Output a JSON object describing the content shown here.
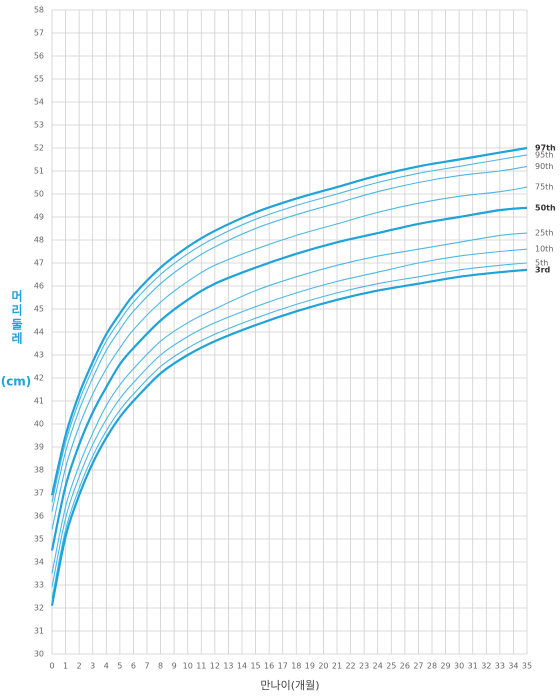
{
  "chart_data": {
    "type": "line",
    "x_label": "만나이(개월)",
    "y_label": "머리둘레",
    "y_unit": "(cm)",
    "x": [
      0,
      1,
      2,
      3,
      4,
      5,
      6,
      8,
      10,
      12,
      15,
      18,
      21,
      24,
      27,
      30,
      33,
      35
    ],
    "xlim": [
      0,
      35
    ],
    "ylim": [
      30,
      58
    ],
    "xticks": [
      0,
      1,
      2,
      3,
      4,
      5,
      6,
      7,
      8,
      9,
      10,
      11,
      12,
      13,
      14,
      15,
      16,
      17,
      18,
      19,
      20,
      21,
      22,
      23,
      24,
      25,
      26,
      27,
      28,
      29,
      30,
      31,
      32,
      33,
      34,
      35
    ],
    "yticks": [
      30,
      31,
      32,
      33,
      34,
      35,
      36,
      37,
      38,
      39,
      40,
      41,
      42,
      43,
      44,
      45,
      46,
      47,
      48,
      49,
      50,
      51,
      52,
      53,
      54,
      55,
      56,
      57,
      58
    ],
    "grid": true,
    "series": [
      {
        "name": "97th",
        "color": "#1fa3d8",
        "line_width": 2,
        "values": [
          36.9,
          39.5,
          41.3,
          42.7,
          43.9,
          44.8,
          45.6,
          46.8,
          47.7,
          48.4,
          49.2,
          49.8,
          50.3,
          50.8,
          51.2,
          51.5,
          51.8,
          52.0
        ]
      },
      {
        "name": "95th",
        "color": "#4bb8e3",
        "line_width": 1,
        "values": [
          36.6,
          39.2,
          41.0,
          42.4,
          43.6,
          44.5,
          45.3,
          46.5,
          47.4,
          48.1,
          48.9,
          49.5,
          50.0,
          50.5,
          50.9,
          51.2,
          51.5,
          51.7
        ]
      },
      {
        "name": "90th",
        "color": "#4bb8e3",
        "line_width": 1,
        "values": [
          36.2,
          38.8,
          40.6,
          42.0,
          43.2,
          44.1,
          44.9,
          46.1,
          47.0,
          47.7,
          48.5,
          49.1,
          49.6,
          50.1,
          50.5,
          50.8,
          51.0,
          51.2
        ]
      },
      {
        "name": "75th",
        "color": "#4bb8e3",
        "line_width": 1,
        "values": [
          35.4,
          38.1,
          39.9,
          41.3,
          42.4,
          43.3,
          44.1,
          45.3,
          46.2,
          46.9,
          47.6,
          48.2,
          48.7,
          49.2,
          49.6,
          49.9,
          50.1,
          50.3
        ]
      },
      {
        "name": "50th",
        "color": "#1fa3d8",
        "line_width": 2,
        "values": [
          34.5,
          37.3,
          39.1,
          40.5,
          41.6,
          42.6,
          43.3,
          44.5,
          45.4,
          46.1,
          46.8,
          47.4,
          47.9,
          48.3,
          48.7,
          49.0,
          49.3,
          49.4
        ]
      },
      {
        "name": "25th",
        "color": "#4bb8e3",
        "line_width": 1,
        "values": [
          33.5,
          36.4,
          38.2,
          39.6,
          40.8,
          41.7,
          42.4,
          43.6,
          44.4,
          45.0,
          45.8,
          46.4,
          46.9,
          47.3,
          47.6,
          47.9,
          48.2,
          48.3
        ]
      },
      {
        "name": "10th",
        "color": "#4bb8e3",
        "line_width": 1,
        "values": [
          32.9,
          35.9,
          37.7,
          39.1,
          40.2,
          41.1,
          41.8,
          43.0,
          43.8,
          44.4,
          45.1,
          45.7,
          46.2,
          46.6,
          47.0,
          47.3,
          47.5,
          47.6
        ]
      },
      {
        "name": "5th",
        "color": "#4bb8e3",
        "line_width": 1,
        "values": [
          32.4,
          35.4,
          37.2,
          38.6,
          39.7,
          40.6,
          41.3,
          42.5,
          43.3,
          43.9,
          44.6,
          45.2,
          45.7,
          46.1,
          46.4,
          46.7,
          46.9,
          47.0
        ]
      },
      {
        "name": "3rd",
        "color": "#1fa3d8",
        "line_width": 2,
        "values": [
          32.1,
          35.1,
          36.9,
          38.3,
          39.4,
          40.3,
          41.0,
          42.2,
          43.0,
          43.6,
          44.3,
          44.9,
          45.4,
          45.8,
          46.1,
          46.4,
          46.6,
          46.7
        ]
      }
    ]
  }
}
